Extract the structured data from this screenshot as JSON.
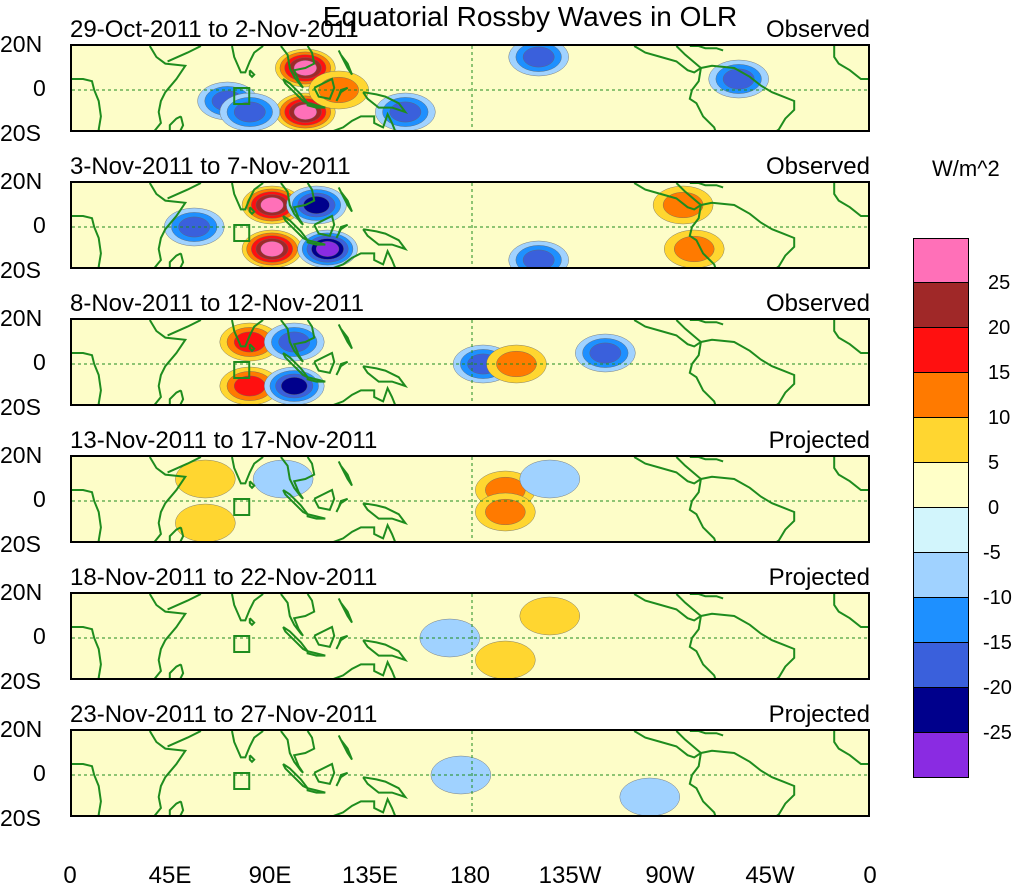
{
  "title": "Equatorial Rossby Waves in OLR",
  "panels": [
    {
      "dates": "29-Oct-2011 to 2-Nov-2011",
      "status": "Observed"
    },
    {
      "dates": "3-Nov-2011 to 7-Nov-2011",
      "status": "Observed"
    },
    {
      "dates": "8-Nov-2011 to 12-Nov-2011",
      "status": "Observed"
    },
    {
      "dates": "13-Nov-2011 to 17-Nov-2011",
      "status": "Projected"
    },
    {
      "dates": "18-Nov-2011 to 22-Nov-2011",
      "status": "Projected"
    },
    {
      "dates": "23-Nov-2011 to 27-Nov-2011",
      "status": "Projected"
    }
  ],
  "lat_labels": {
    "north": "20N",
    "equator": "0",
    "south": "20S"
  },
  "lon_labels": [
    "0",
    "45E",
    "90E",
    "135E",
    "180",
    "135W",
    "90W",
    "45W",
    "0"
  ],
  "colorbar": {
    "units": "W/m^2",
    "labels": [
      "25",
      "20",
      "15",
      "10",
      "5",
      "0",
      "-5",
      "-10",
      "-15",
      "-20",
      "-25"
    ],
    "colors": [
      "#ff70b8",
      "#a02828",
      "#ff1010",
      "#ff7a00",
      "#ffd630",
      "#ffffc8",
      "#d2f5fc",
      "#a0d2ff",
      "#1e90ff",
      "#3a60dc",
      "#00008c",
      "#8a2be2"
    ]
  },
  "map_colors": {
    "background": "#fdfdc8",
    "land_outline": "#1e8c1e",
    "equator_line": "#1e8c1e"
  },
  "chart_data": {
    "type": "heatmap",
    "variable": "OLR anomaly (Equatorial Rossby wave filtered)",
    "units": "W/m^2",
    "lon_range": [
      0,
      360
    ],
    "lat_range": [
      -20,
      20
    ],
    "contour_levels": [
      -25,
      -20,
      -15,
      -10,
      -5,
      0,
      5,
      10,
      15,
      20,
      25
    ],
    "panels": [
      {
        "period": "29-Oct-2011 to 2-Nov-2011",
        "kind": "Observed",
        "anomalies": [
          {
            "lon": 105,
            "lat": 10,
            "value": 25
          },
          {
            "lon": 105,
            "lat": -10,
            "value": 25
          },
          {
            "lon": 120,
            "lat": 0,
            "value": 10
          },
          {
            "lon": 70,
            "lat": -5,
            "value": -15
          },
          {
            "lon": 80,
            "lat": -10,
            "value": -15
          },
          {
            "lon": 150,
            "lat": -10,
            "value": -15
          },
          {
            "lon": 210,
            "lat": 15,
            "value": -15
          },
          {
            "lon": 300,
            "lat": 5,
            "value": -15
          }
        ]
      },
      {
        "period": "3-Nov-2011 to 7-Nov-2011",
        "kind": "Observed",
        "anomalies": [
          {
            "lon": 90,
            "lat": 10,
            "value": 25
          },
          {
            "lon": 90,
            "lat": -10,
            "value": 25
          },
          {
            "lon": 110,
            "lat": 10,
            "value": -20
          },
          {
            "lon": 115,
            "lat": -10,
            "value": -25
          },
          {
            "lon": 55,
            "lat": 0,
            "value": -15
          },
          {
            "lon": 210,
            "lat": -15,
            "value": -15
          },
          {
            "lon": 275,
            "lat": 10,
            "value": 10
          },
          {
            "lon": 280,
            "lat": -10,
            "value": 10
          }
        ]
      },
      {
        "period": "8-Nov-2011 to 12-Nov-2011",
        "kind": "Observed",
        "anomalies": [
          {
            "lon": 80,
            "lat": 10,
            "value": 15
          },
          {
            "lon": 80,
            "lat": -10,
            "value": 15
          },
          {
            "lon": 100,
            "lat": 10,
            "value": -15
          },
          {
            "lon": 100,
            "lat": -10,
            "value": -20
          },
          {
            "lon": 185,
            "lat": 0,
            "value": -15
          },
          {
            "lon": 200,
            "lat": 0,
            "value": 10
          },
          {
            "lon": 240,
            "lat": 5,
            "value": -15
          }
        ]
      },
      {
        "period": "13-Nov-2011 to 17-Nov-2011",
        "kind": "Projected",
        "anomalies": [
          {
            "lon": 60,
            "lat": 10,
            "value": 5
          },
          {
            "lon": 60,
            "lat": -10,
            "value": 5
          },
          {
            "lon": 95,
            "lat": 10,
            "value": -5
          },
          {
            "lon": 195,
            "lat": 5,
            "value": 10
          },
          {
            "lon": 195,
            "lat": -5,
            "value": 10
          },
          {
            "lon": 215,
            "lat": 10,
            "value": -5
          }
        ]
      },
      {
        "period": "18-Nov-2011 to 22-Nov-2011",
        "kind": "Projected",
        "anomalies": [
          {
            "lon": 215,
            "lat": 10,
            "value": 5
          },
          {
            "lon": 170,
            "lat": 0,
            "value": -5
          },
          {
            "lon": 195,
            "lat": -10,
            "value": 5
          }
        ]
      },
      {
        "period": "23-Nov-2011 to 27-Nov-2011",
        "kind": "Projected",
        "anomalies": [
          {
            "lon": 175,
            "lat": 0,
            "value": -5
          },
          {
            "lon": 260,
            "lat": -10,
            "value": -5
          }
        ]
      }
    ]
  }
}
